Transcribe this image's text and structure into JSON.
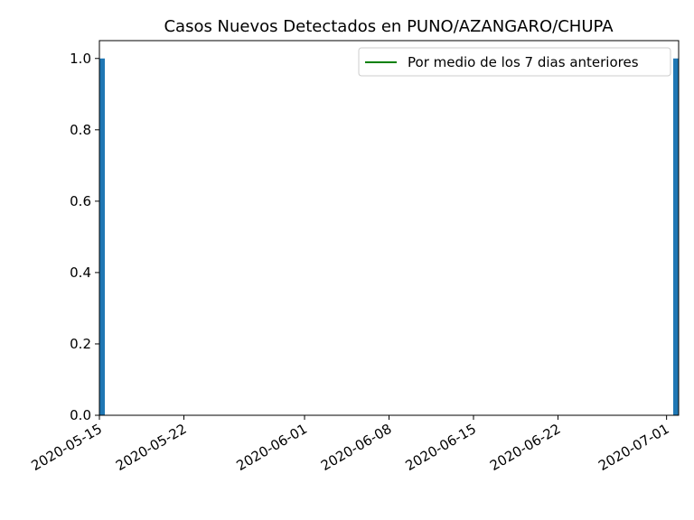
{
  "chart_data": {
    "type": "bar",
    "title": "Casos Nuevos Detectados en PUNO/AZANGARO/CHUPA",
    "xlabel": "",
    "ylabel": "",
    "x_range": [
      "2020-05-15",
      "2020-07-02"
    ],
    "ylim": [
      0,
      1.05
    ],
    "y_ticks": [
      0.0,
      0.2,
      0.4,
      0.6,
      0.8,
      1.0
    ],
    "y_tick_labels": [
      "0.0",
      "0.2",
      "0.4",
      "0.6",
      "0.8",
      "1.0"
    ],
    "x_ticks": [
      "2020-05-15",
      "2020-05-22",
      "2020-06-01",
      "2020-06-08",
      "2020-06-15",
      "2020-06-22",
      "2020-07-01"
    ],
    "x_tick_labels": [
      "2020-05-15",
      "2020-05-22",
      "2020-06-01",
      "2020-06-08",
      "2020-06-15",
      "2020-06-22",
      "2020-07-01"
    ],
    "bars": [
      {
        "date": "2020-05-15",
        "value": 1
      },
      {
        "date": "2020-07-02",
        "value": 1
      }
    ],
    "bar_color": "#1f77b4",
    "line_series": {
      "name": "Por medio de los 7 dias anteriores",
      "color": "#008000",
      "points": []
    },
    "legend_position": "upper right",
    "grid": false
  }
}
